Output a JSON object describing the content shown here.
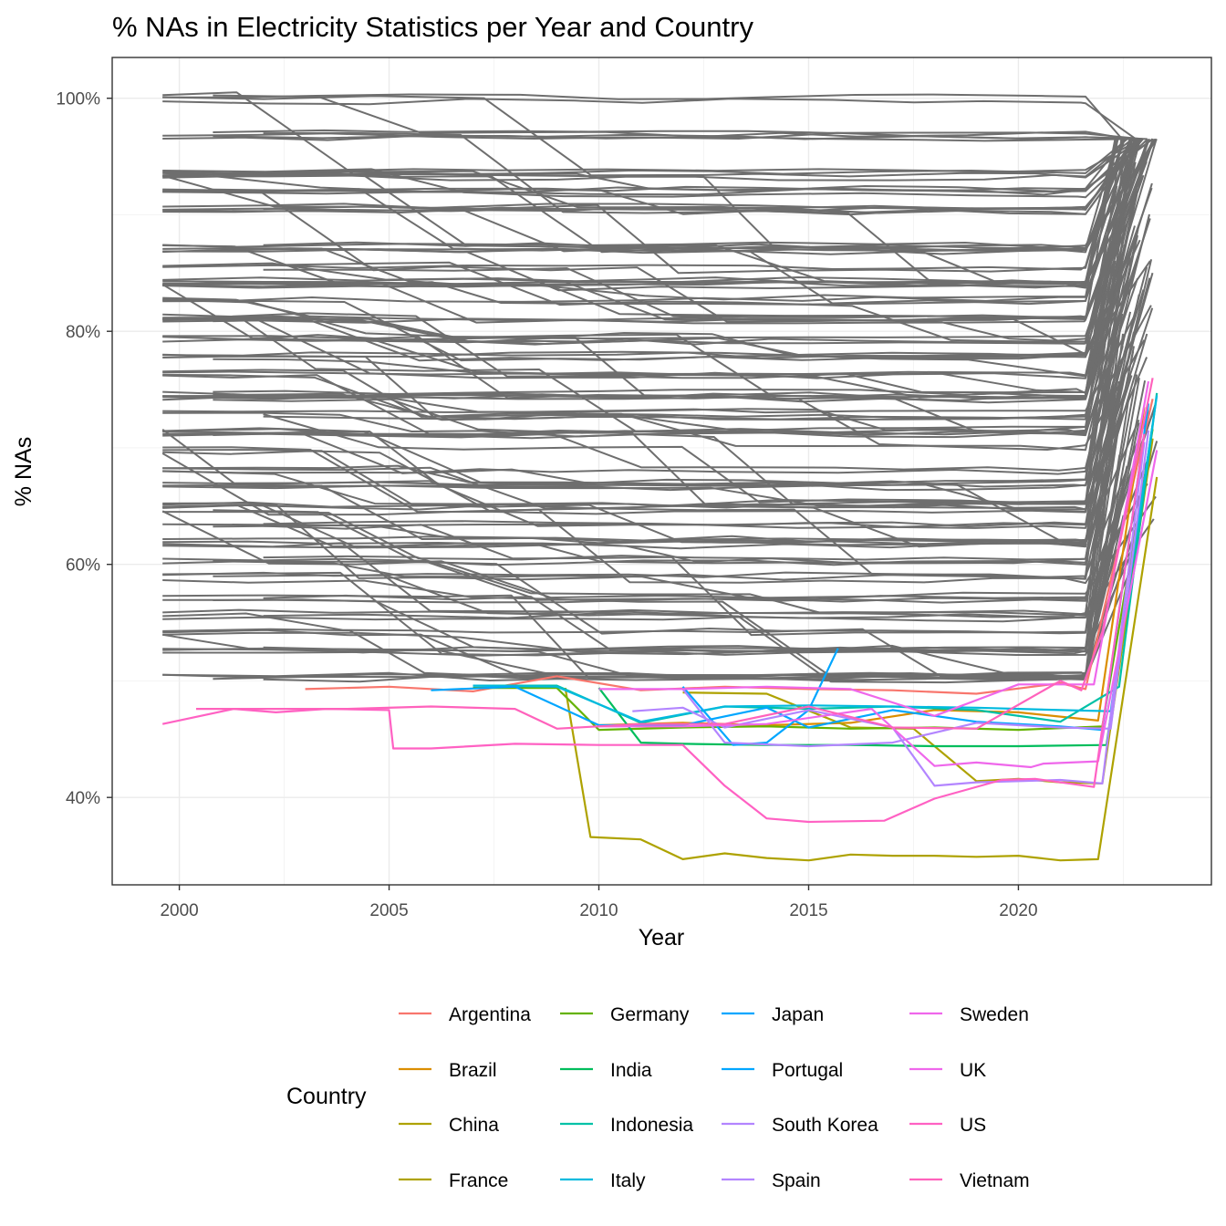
{
  "chart_data": {
    "type": "line",
    "title": "% NAs in Electricity Statistics per Year and Country",
    "xlabel": "Year",
    "ylabel": "% NAs",
    "xlim": [
      1998.4,
      2024.6
    ],
    "ylim": [
      32.5,
      103.5
    ],
    "x_ticks": [
      2000,
      2005,
      2010,
      2015,
      2020
    ],
    "y_ticks": [
      40,
      60,
      80,
      100
    ],
    "y_tick_labels": [
      "40%",
      "60%",
      "80%",
      "100%"
    ],
    "grid": true,
    "legend": {
      "title": "Country",
      "position": "bottom"
    },
    "background_series": {
      "color": "#6e6e6e",
      "levels": [
        100.0,
        96.8,
        93.6,
        93.4,
        92.0,
        90.5,
        87.3,
        87.1,
        85.5,
        84.2,
        83.9,
        82.6,
        81.2,
        80.9,
        79.4,
        77.8,
        76.5,
        74.6,
        74.3,
        72.9,
        71.5,
        71.2,
        69.8,
        68.2,
        66.9,
        65.1,
        64.8,
        63.3,
        61.9,
        60.3,
        58.9,
        57.2,
        55.6,
        54.0,
        52.6,
        50.3
      ]
    },
    "series": [
      {
        "name": "Argentina",
        "color": "#F8766D",
        "x": [
          2003.0,
          2005.0,
          2007.0,
          2009.0,
          2011.0,
          2013.0,
          2015.0,
          2017.0,
          2019.0,
          2021.0,
          2021.6,
          2023.2
        ],
        "y": [
          49.3,
          49.5,
          49.1,
          50.4,
          49.2,
          49.5,
          49.3,
          49.2,
          48.9,
          49.8,
          49.3,
          74.2
        ]
      },
      {
        "name": "Brazil",
        "color": "#DB8E00",
        "x": [
          2010.0,
          2012.0,
          2014.0,
          2016.0,
          2018.0,
          2020.0,
          2021.9,
          2023.0
        ],
        "y": [
          46.2,
          46.4,
          46.2,
          46.4,
          47.5,
          47.3,
          46.6,
          73.5
        ]
      },
      {
        "name": "China",
        "color": "#AEA200",
        "x": [
          2009.2,
          2009.8,
          2011.0,
          2012.0,
          2013.0,
          2014.0,
          2015.0,
          2016.0,
          2017.0,
          2018.0,
          2019.0,
          2020.0,
          2021.0,
          2021.9,
          2023.3
        ],
        "y": [
          49.4,
          36.6,
          36.4,
          34.7,
          35.2,
          34.8,
          34.6,
          35.1,
          35.0,
          35.0,
          34.9,
          35.0,
          34.6,
          34.7,
          67.5
        ]
      },
      {
        "name": "France",
        "color": "#AEA200",
        "x": [
          2012.0,
          2014.0,
          2016.0,
          2017.5,
          2019.0,
          2020.0,
          2021.0,
          2022.0,
          2023.2
        ],
        "y": [
          49.0,
          48.9,
          46.0,
          45.9,
          41.4,
          41.6,
          41.3,
          41.2,
          70.8
        ]
      },
      {
        "name": "Germany",
        "color": "#64B200",
        "x": [
          2007.0,
          2009.0,
          2010.0,
          2012.0,
          2014.0,
          2016.0,
          2018.0,
          2020.0,
          2022.0,
          2023.2
        ],
        "y": [
          49.4,
          49.4,
          45.8,
          46.0,
          46.1,
          45.9,
          46.0,
          45.8,
          46.1,
          71.6
        ]
      },
      {
        "name": "India",
        "color": "#00BD5C",
        "x": [
          2010.0,
          2011.0,
          2012.0,
          2014.0,
          2016.0,
          2018.0,
          2020.0,
          2022.1,
          2023.2
        ],
        "y": [
          49.4,
          44.7,
          44.6,
          44.5,
          44.5,
          44.4,
          44.4,
          44.5,
          72.0
        ]
      },
      {
        "name": "Indonesia",
        "color": "#00C1A7",
        "x": [
          2007.0,
          2009.0,
          2011.0,
          2013.0,
          2015.0,
          2017.0,
          2019.0,
          2021.0,
          2022.4,
          2023.3
        ],
        "y": [
          49.6,
          49.6,
          46.4,
          47.8,
          47.6,
          47.8,
          47.5,
          46.5,
          49.5,
          74.7
        ]
      },
      {
        "name": "Italy",
        "color": "#00BADE",
        "x": [
          2007.0,
          2009.0,
          2011.0,
          2013.0,
          2015.0,
          2017.0,
          2019.0,
          2021.0,
          2022.2,
          2023.3
        ],
        "y": [
          49.6,
          49.5,
          46.5,
          47.8,
          47.9,
          47.8,
          47.7,
          47.5,
          47.4,
          74.5
        ]
      },
      {
        "name": "Japan",
        "color": "#00A6FF",
        "x": [
          2006.0,
          2008.0,
          2010.0,
          2012.0,
          2014.0,
          2015.0,
          2017.0,
          2019.0,
          2021.0,
          2022.0,
          2023.1
        ],
        "y": [
          49.2,
          49.5,
          46.2,
          46.2,
          47.7,
          46.0,
          47.5,
          46.5,
          46.1,
          45.8,
          73.8
        ]
      },
      {
        "name": "Portugal",
        "color": "#00A6FF",
        "x": [
          2012.0,
          2013.2,
          2014.0,
          2015.0,
          2015.7
        ],
        "y": [
          49.5,
          44.5,
          44.7,
          47.5,
          52.8
        ]
      },
      {
        "name": "South Korea",
        "color": "#B385FF",
        "x": [
          2012.0,
          2013.0,
          2015.0,
          2017.0,
          2019.0,
          2021.0,
          2022.2,
          2023.1
        ],
        "y": [
          49.3,
          44.7,
          44.4,
          44.7,
          46.4,
          46.0,
          45.9,
          71.5
        ]
      },
      {
        "name": "Spain",
        "color": "#B385FF",
        "x": [
          2010.8,
          2012.0,
          2013.0,
          2015.0,
          2017.0,
          2018.0,
          2019.0,
          2021.0,
          2022.0,
          2023.0
        ],
        "y": [
          47.4,
          47.7,
          46.0,
          47.5,
          46.0,
          41.0,
          41.3,
          41.5,
          41.2,
          70.5
        ]
      },
      {
        "name": "Sweden",
        "color": "#EF67EB",
        "x": [
          2010.0,
          2012.0,
          2014.0,
          2016.0,
          2018.0,
          2020.0,
          2021.8,
          2023.1
        ],
        "y": [
          49.3,
          49.3,
          49.5,
          49.3,
          47.0,
          49.7,
          49.7,
          75.7
        ]
      },
      {
        "name": "UK",
        "color": "#EF67EB",
        "x": [
          2010.0,
          2012.0,
          2014.0,
          2016.5,
          2018.0,
          2019.0,
          2020.3,
          2020.6,
          2021.9,
          2023.3
        ],
        "y": [
          46.1,
          46.1,
          46.3,
          47.6,
          42.7,
          43.0,
          42.6,
          42.9,
          43.1,
          69.8
        ]
      },
      {
        "name": "US",
        "color": "#FF61C3",
        "x": [
          1999.6,
          2001.3,
          2002.3,
          2003.5,
          2005.0,
          2005.1,
          2006.0,
          2008.0,
          2010.0,
          2012.0,
          2013.0,
          2014.0,
          2015.0,
          2016.8,
          2018.0,
          2019.6,
          2020.4,
          2021.8,
          2023.0
        ],
        "y": [
          46.3,
          47.6,
          47.3,
          47.6,
          47.5,
          44.2,
          44.2,
          44.6,
          44.5,
          44.5,
          41.0,
          38.2,
          37.9,
          38.0,
          39.9,
          41.5,
          41.6,
          40.9,
          71.2
        ]
      },
      {
        "name": "Vietnam",
        "color": "#FF62BC",
        "x": [
          2000.4,
          2002.0,
          2004.0,
          2006.0,
          2008.0,
          2009.0,
          2011.0,
          2013.0,
          2015.0,
          2017.0,
          2019.0,
          2021.0,
          2021.5,
          2022.0,
          2023.2
        ],
        "y": [
          47.6,
          47.6,
          47.6,
          47.8,
          47.6,
          45.9,
          46.3,
          46.3,
          47.8,
          46.0,
          45.9,
          50.0,
          49.2,
          54.2,
          76.0
        ]
      }
    ]
  }
}
